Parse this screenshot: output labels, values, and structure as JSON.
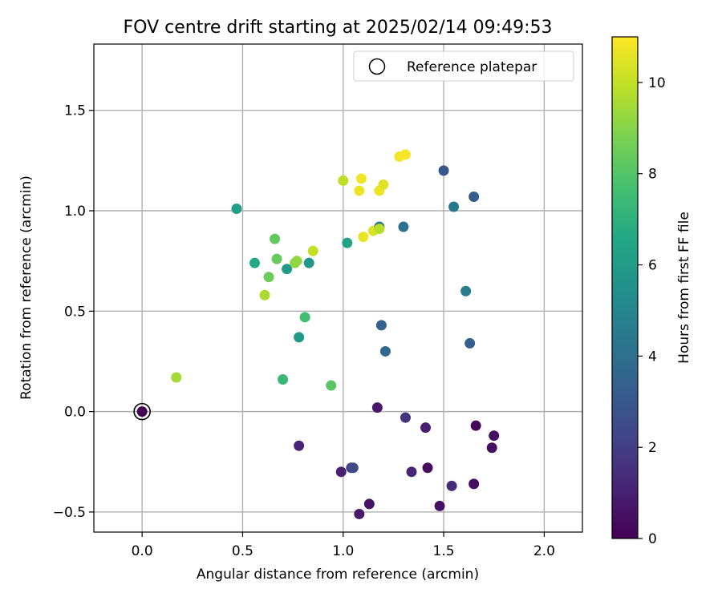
{
  "chart_data": {
    "type": "scatter",
    "title": "FOV centre drift starting at 2025/02/14 09:49:53",
    "xlabel": "Angular distance from reference (arcmin)",
    "ylabel": "Rotation from reference (arcmin)",
    "xlim": [
      -0.24,
      2.19
    ],
    "ylim": [
      -0.6,
      1.83
    ],
    "xticks": [
      0.0,
      0.5,
      1.0,
      1.5,
      2.0
    ],
    "xtick_labels": [
      "0.0",
      "0.5",
      "1.0",
      "1.5",
      "2.0"
    ],
    "yticks": [
      -0.5,
      0.0,
      0.5,
      1.0,
      1.5
    ],
    "ytick_labels": [
      "−0.5",
      "0.0",
      "0.5",
      "1.0",
      "1.5"
    ],
    "grid": true,
    "legend": {
      "position": "top-right",
      "entries": [
        "Reference platepar"
      ]
    },
    "colorbar": {
      "label": "Hours from first FF file",
      "range": [
        0,
        11
      ],
      "ticks": [
        0,
        2,
        4,
        6,
        8,
        10
      ],
      "tick_labels": [
        "0",
        "2",
        "4",
        "6",
        "8",
        "10"
      ],
      "colormap": "viridis"
    },
    "reference_point": {
      "x": 0.0,
      "y": 0.0
    },
    "points": [
      {
        "x": 0.0,
        "y": 0.0,
        "hours": 0.0
      },
      {
        "x": 0.17,
        "y": 0.17,
        "hours": 9.5
      },
      {
        "x": 0.47,
        "y": 1.01,
        "hours": 6.2
      },
      {
        "x": 0.56,
        "y": 0.74,
        "hours": 6.6
      },
      {
        "x": 0.61,
        "y": 0.58,
        "hours": 9.6
      },
      {
        "x": 0.63,
        "y": 0.67,
        "hours": 8.5
      },
      {
        "x": 0.66,
        "y": 0.86,
        "hours": 8.3
      },
      {
        "x": 0.67,
        "y": 0.76,
        "hours": 8.4
      },
      {
        "x": 0.7,
        "y": 0.16,
        "hours": 7.3
      },
      {
        "x": 0.72,
        "y": 0.71,
        "hours": 6.0
      },
      {
        "x": 0.76,
        "y": 0.74,
        "hours": 9.1
      },
      {
        "x": 0.77,
        "y": 0.75,
        "hours": 9.2
      },
      {
        "x": 0.78,
        "y": 0.37,
        "hours": 5.9
      },
      {
        "x": 0.78,
        "y": -0.17,
        "hours": 1.1
      },
      {
        "x": 0.81,
        "y": 0.47,
        "hours": 7.6
      },
      {
        "x": 0.83,
        "y": 0.74,
        "hours": 5.8
      },
      {
        "x": 0.85,
        "y": 0.8,
        "hours": 10.0
      },
      {
        "x": 0.94,
        "y": 0.13,
        "hours": 8.1
      },
      {
        "x": 0.99,
        "y": -0.3,
        "hours": 1.0
      },
      {
        "x": 1.0,
        "y": 1.15,
        "hours": 9.9
      },
      {
        "x": 1.02,
        "y": 0.84,
        "hours": 6.3
      },
      {
        "x": 1.04,
        "y": -0.28,
        "hours": 2.2
      },
      {
        "x": 1.05,
        "y": -0.28,
        "hours": 2.4
      },
      {
        "x": 1.08,
        "y": -0.51,
        "hours": 0.8
      },
      {
        "x": 1.08,
        "y": 1.1,
        "hours": 10.7
      },
      {
        "x": 1.09,
        "y": 1.16,
        "hours": 10.8
      },
      {
        "x": 1.1,
        "y": 0.87,
        "hours": 10.6
      },
      {
        "x": 1.13,
        "y": -0.46,
        "hours": 0.6
      },
      {
        "x": 1.15,
        "y": 0.9,
        "hours": 10.4
      },
      {
        "x": 1.17,
        "y": 0.02,
        "hours": 0.7
      },
      {
        "x": 1.18,
        "y": 0.92,
        "hours": 4.5
      },
      {
        "x": 1.18,
        "y": 0.91,
        "hours": 9.8
      },
      {
        "x": 1.18,
        "y": 1.1,
        "hours": 10.7
      },
      {
        "x": 1.19,
        "y": 0.43,
        "hours": 3.4
      },
      {
        "x": 1.2,
        "y": 1.13,
        "hours": 10.5
      },
      {
        "x": 1.21,
        "y": 0.3,
        "hours": 3.7
      },
      {
        "x": 1.28,
        "y": 1.27,
        "hours": 10.8
      },
      {
        "x": 1.3,
        "y": 0.92,
        "hours": 4.1
      },
      {
        "x": 1.31,
        "y": 1.28,
        "hours": 10.9
      },
      {
        "x": 1.31,
        "y": -0.03,
        "hours": 1.7
      },
      {
        "x": 1.34,
        "y": -0.3,
        "hours": 1.2
      },
      {
        "x": 1.41,
        "y": -0.08,
        "hours": 0.9
      },
      {
        "x": 1.42,
        "y": -0.28,
        "hours": 0.3
      },
      {
        "x": 1.48,
        "y": -0.47,
        "hours": 0.5
      },
      {
        "x": 1.5,
        "y": 1.2,
        "hours": 3.0
      },
      {
        "x": 1.54,
        "y": -0.37,
        "hours": 1.4
      },
      {
        "x": 1.55,
        "y": 1.02,
        "hours": 4.4
      },
      {
        "x": 1.61,
        "y": 0.6,
        "hours": 4.6
      },
      {
        "x": 1.63,
        "y": 0.34,
        "hours": 3.3
      },
      {
        "x": 1.65,
        "y": -0.36,
        "hours": 0.4
      },
      {
        "x": 1.65,
        "y": 1.07,
        "hours": 3.2
      },
      {
        "x": 1.66,
        "y": -0.07,
        "hours": 0.2
      },
      {
        "x": 1.74,
        "y": -0.18,
        "hours": 0.3
      },
      {
        "x": 1.75,
        "y": -0.12,
        "hours": 0.4
      }
    ]
  }
}
